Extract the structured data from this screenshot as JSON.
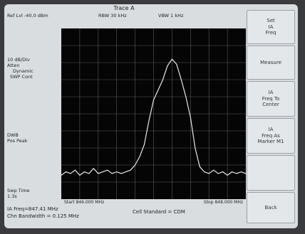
{
  "window": {
    "title": "Trace A"
  },
  "header": {
    "ref_level": "Ref Lvl -40.0 dBm",
    "rbw": "RBW 30 kHz",
    "vbw": "VBW 1 kHz"
  },
  "left_panel": {
    "scale": "10 dB/Div",
    "atten_line1": "Atten",
    "atten_line2": "Dynamic",
    "atten_line3": "SWP Cont",
    "detector_line1": "DWB",
    "detector_line2": "Pos Peak",
    "sweep_line1": "Swp Time",
    "sweep_line2": "1.3s"
  },
  "plot": {
    "start_freq": "Start 846.000 MHz",
    "stop_freq": "Stop 848.000 MHz"
  },
  "bottom": {
    "center_freq": "IA Freq=847.41 MHz",
    "channel_bandwidth": "Chn Bandwidth = 0.125 MHz",
    "cell_standard": "Cell Standard = CDM"
  },
  "softkeys": [
    {
      "line1": "Set",
      "line2": "IA",
      "line3": "Freq"
    },
    {
      "line1": "Measure",
      "line2": "",
      "line3": ""
    },
    {
      "line1": "IA",
      "line2": "Freq To",
      "line3": "Center"
    },
    {
      "line1": "IA",
      "line2": "Freq As",
      "line3": "Marker M1"
    },
    {
      "line1": "",
      "line2": "",
      "line3": ""
    },
    {
      "line1": "Back",
      "line2": "",
      "line3": ""
    }
  ],
  "colors": {
    "screen_bg": "#d9dde0",
    "plot_bg": "#050505",
    "grid": "#5a5a5a",
    "trace": "#e8e8e8",
    "bezel": "#3b3b3d"
  },
  "chart_data": {
    "type": "line",
    "title": "",
    "xlabel": "",
    "ylabel": "",
    "xlim": [
      846.0,
      848.0
    ],
    "ylim": [
      0,
      10
    ],
    "grid": true,
    "series": [
      {
        "x": [
          846.0,
          846.05,
          846.1,
          846.15,
          846.2,
          846.25,
          846.3,
          846.35,
          846.4,
          846.45,
          846.5,
          846.55,
          846.6,
          846.65,
          846.7,
          846.75,
          846.8,
          846.85,
          846.9,
          846.95,
          847.0,
          847.05,
          847.1,
          847.15,
          847.2,
          847.25,
          847.3,
          847.35,
          847.4,
          847.45,
          847.5,
          847.55,
          847.6,
          847.65,
          847.7,
          847.75,
          847.8,
          847.85,
          847.9,
          847.95,
          848.0
        ],
        "values": [
          1.4,
          1.6,
          1.5,
          1.7,
          1.4,
          1.6,
          1.5,
          1.8,
          1.5,
          1.6,
          1.7,
          1.5,
          1.6,
          1.5,
          1.6,
          1.7,
          2.0,
          2.5,
          3.2,
          4.6,
          5.8,
          6.4,
          7.0,
          7.8,
          8.2,
          7.9,
          7.0,
          6.0,
          4.8,
          3.0,
          1.9,
          1.6,
          1.5,
          1.7,
          1.5,
          1.6,
          1.4,
          1.6,
          1.5,
          1.6,
          1.5
        ]
      }
    ]
  }
}
